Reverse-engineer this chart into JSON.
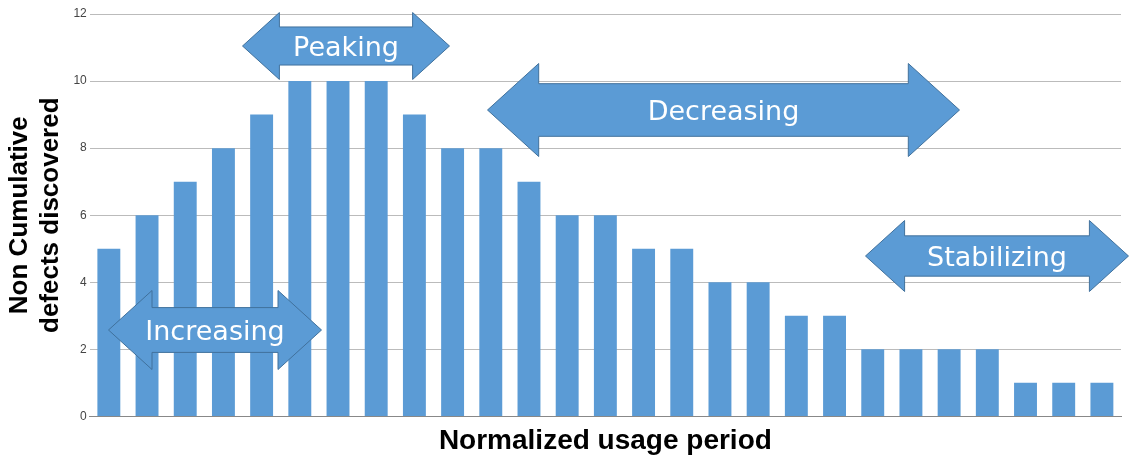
{
  "chart_data": {
    "type": "bar",
    "xlabel": "Normalized usage period",
    "ylabel": "Non Cumulative defects discovered",
    "categories": [
      null,
      null,
      null,
      null,
      null,
      null,
      null,
      null,
      null,
      null,
      null,
      null,
      null,
      null,
      null,
      null,
      null,
      null,
      null,
      null,
      null,
      null,
      null,
      null,
      null,
      null,
      null
    ],
    "values": [
      5,
      6,
      7,
      8,
      9,
      10,
      10,
      10,
      9,
      8,
      8,
      7,
      6,
      6,
      5,
      5,
      4,
      4,
      3,
      3,
      2,
      2,
      2,
      2,
      1,
      1,
      1
    ],
    "color": "#5b9bd5",
    "ylim": [
      0,
      12
    ],
    "yticks": [
      0,
      2,
      4,
      6,
      8,
      10,
      12
    ],
    "grid": "y",
    "legend": false,
    "annotations": [
      "Peaking",
      "Decreasing",
      "Stabilizing",
      "Increasing"
    ]
  }
}
